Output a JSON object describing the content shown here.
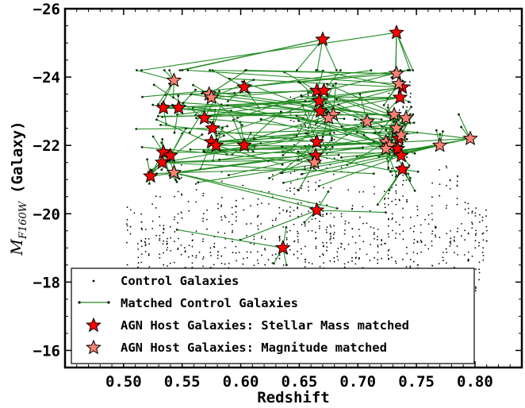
{
  "chart_data": {
    "type": "scatter",
    "title": "",
    "xlabel": "Redshift",
    "ylabel_symbol": "M",
    "ylabel_subscript": "F160W",
    "ylabel_suffix": "(Galaxy)",
    "xlim": [
      0.45,
      0.84
    ],
    "ylim": [
      -15.5,
      -26
    ],
    "y_inverted": true,
    "x_ticks": [
      0.5,
      0.55,
      0.6,
      0.65,
      0.7,
      0.75,
      0.8
    ],
    "x_tick_labels": [
      "0.50",
      "0.55",
      "0.60",
      "0.65",
      "0.70",
      "0.75",
      "0.80"
    ],
    "y_ticks": [
      -26,
      -24,
      -22,
      -20,
      -18,
      -16
    ],
    "y_tick_labels": [
      "−26",
      "−24",
      "−22",
      "−20",
      "−18",
      "−16"
    ],
    "grid": false,
    "legend_position": "bottom-left",
    "series": [
      {
        "name": "Control Galaxies",
        "kind": "points",
        "color": "#000000"
      },
      {
        "name": "Matched Control Galaxies",
        "kind": "connected-points",
        "color": "#228b22"
      },
      {
        "name": "AGN Host Galaxies: Stellar Mass matched",
        "kind": "star",
        "color": "#ff0000",
        "points": [
          [
            0.67,
            -25.1
          ],
          [
            0.733,
            -25.3
          ],
          [
            0.603,
            -23.7
          ],
          [
            0.665,
            -23.6
          ],
          [
            0.671,
            -23.6
          ],
          [
            0.667,
            -23.3
          ],
          [
            0.738,
            -23.7
          ],
          [
            0.736,
            -23.4
          ],
          [
            0.534,
            -23.1
          ],
          [
            0.547,
            -23.1
          ],
          [
            0.569,
            -22.8
          ],
          [
            0.576,
            -22.5
          ],
          [
            0.668,
            -23.0
          ],
          [
            0.575,
            -22.1
          ],
          [
            0.579,
            -22.0
          ],
          [
            0.603,
            -22.0
          ],
          [
            0.665,
            -22.1
          ],
          [
            0.664,
            -21.7
          ],
          [
            0.534,
            -21.8
          ],
          [
            0.533,
            -21.5
          ],
          [
            0.54,
            -21.7
          ],
          [
            0.523,
            -21.1
          ],
          [
            0.735,
            -22.2
          ],
          [
            0.734,
            -21.9
          ],
          [
            0.737,
            -21.7
          ],
          [
            0.738,
            -21.3
          ],
          [
            0.665,
            -20.1
          ],
          [
            0.636,
            -19.0
          ]
        ]
      },
      {
        "name": "AGN Host Galaxies: Magnitude matched",
        "kind": "star",
        "color": "#fa8072",
        "points": [
          [
            0.543,
            -23.9
          ],
          [
            0.573,
            -23.5
          ],
          [
            0.575,
            -23.4
          ],
          [
            0.733,
            -24.1
          ],
          [
            0.735,
            -23.8
          ],
          [
            0.679,
            -22.9
          ],
          [
            0.675,
            -22.8
          ],
          [
            0.708,
            -22.7
          ],
          [
            0.731,
            -22.9
          ],
          [
            0.741,
            -22.8
          ],
          [
            0.733,
            -22.5
          ],
          [
            0.737,
            -22.3
          ],
          [
            0.724,
            -22.1
          ],
          [
            0.727,
            -22.0
          ],
          [
            0.724,
            -21.9
          ],
          [
            0.663,
            -21.5
          ],
          [
            0.543,
            -21.2
          ],
          [
            0.77,
            -22.0
          ],
          [
            0.796,
            -22.2
          ]
        ]
      }
    ]
  }
}
